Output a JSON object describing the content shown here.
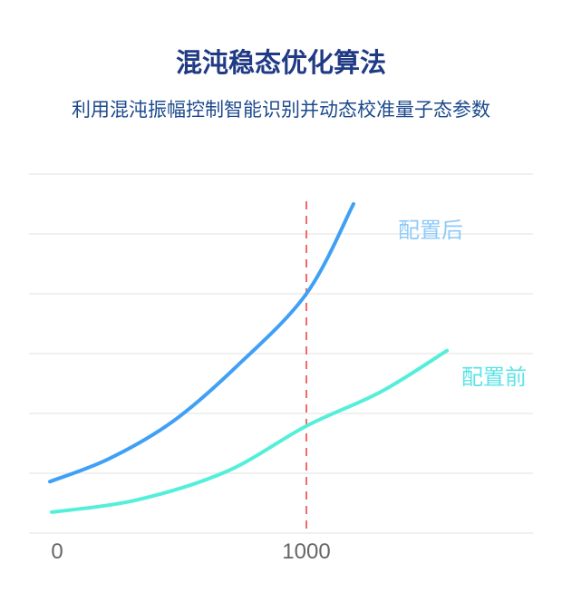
{
  "chart_data": {
    "type": "line",
    "title": "混沌稳态优化算法",
    "subtitle": "利用混沌振幅控制智能识别并动态校准量子态参数",
    "xlabel": "",
    "ylabel": "",
    "x_ticks": [
      "0",
      "1000"
    ],
    "xlim": [
      -30,
      1900
    ],
    "ylim": [
      0,
      6
    ],
    "grid": true,
    "reference_line": {
      "x": 1000,
      "style": "dashed",
      "color": "#f26a6a"
    },
    "series": [
      {
        "name": "配置后",
        "color": "#3fa0f5",
        "label_color": "#8fcaf7",
        "x": [
          -29,
          207,
          462,
          716,
          1000,
          1189
        ],
        "y": [
          0.86,
          1.24,
          1.86,
          2.77,
          4.0,
          5.5
        ]
      },
      {
        "name": "配置前",
        "color": "#55efd9",
        "label_color": "#5ce3e6",
        "x": [
          -22,
          316,
          680,
          1000,
          1298,
          1564
        ],
        "y": [
          0.35,
          0.55,
          1.03,
          1.79,
          2.36,
          3.05
        ]
      }
    ]
  }
}
